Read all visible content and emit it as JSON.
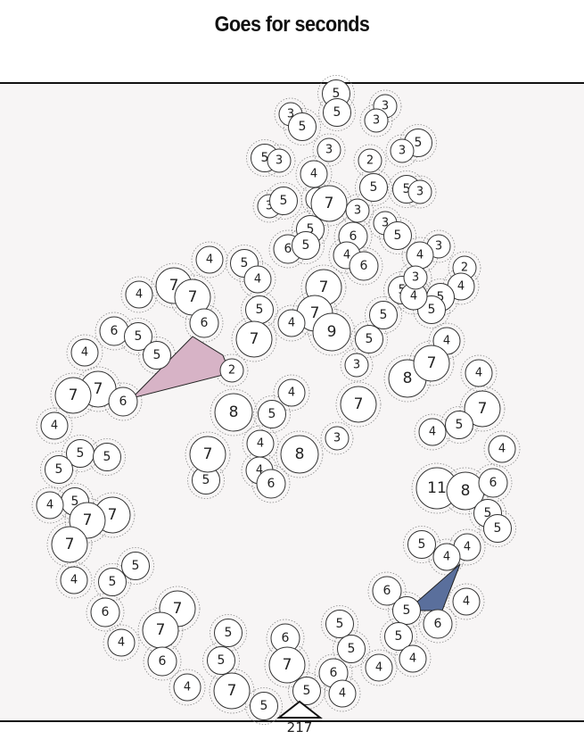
{
  "title": "Goes for seconds",
  "total": "217",
  "colors": {
    "panel_bg": "#f7f5f5",
    "wedge_pink": "#d7b3c6",
    "wedge_blue": "#5a6f9c",
    "node_fill": "#ffffff",
    "node_stroke": "#333333",
    "halo_stroke": "#888888"
  },
  "nodes": [
    "5",
    "3",
    "3",
    "5",
    "5",
    "3",
    "5",
    "3",
    "3",
    "5",
    "2",
    "3",
    "5",
    "5",
    "3",
    "4",
    "3",
    "7",
    "3",
    "3",
    "5",
    "3",
    "6",
    "6",
    "5",
    "3",
    "5",
    "4",
    "4",
    "2",
    "4",
    "7",
    "5",
    "5",
    "4",
    "6",
    "5",
    "4",
    "4",
    "7",
    "7",
    "7",
    "4",
    "5",
    "5",
    "6",
    "5",
    "5",
    "4",
    "9",
    "5",
    "4",
    "3",
    "7",
    "6",
    "5",
    "5",
    "8",
    "7",
    "4",
    "3",
    "2",
    "4",
    "4",
    "7",
    "7",
    "6",
    "7",
    "8",
    "5",
    "7",
    "4",
    "4",
    "5",
    "4",
    "5",
    "8",
    "5",
    "3",
    "5",
    "5",
    "4",
    "7",
    "4",
    "11",
    "8",
    "7",
    "6",
    "5",
    "5",
    "5",
    "7",
    "4",
    "7",
    "4",
    "5",
    "5",
    "5",
    "4",
    "4",
    "6",
    "6",
    "5",
    "4",
    "6",
    "7",
    "7",
    "4",
    "5",
    "5",
    "5",
    "5",
    "6",
    "5",
    "5",
    "6",
    "4",
    "7",
    "6",
    "4",
    "7",
    "4",
    "4",
    "5",
    "6"
  ]
}
